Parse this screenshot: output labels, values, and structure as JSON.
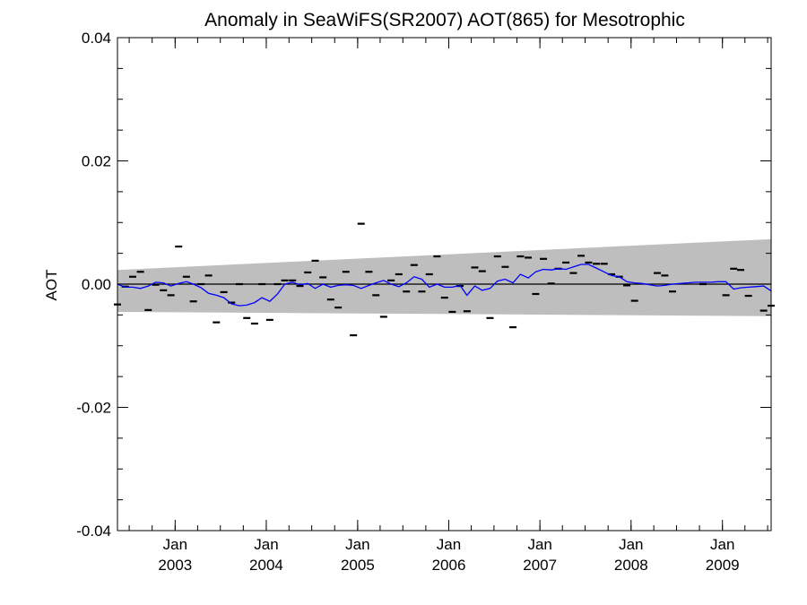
{
  "chart_data": {
    "type": "line",
    "title": "Anomaly in SeaWiFS(SR2007) AOT(865) for Mesotrophic",
    "xlabel": "",
    "ylabel": "AOT",
    "xlim": [
      "2002-05-15",
      "2009-07-15"
    ],
    "ylim": [
      -0.04,
      0.04
    ],
    "yticks": [
      "0.04",
      "0.02",
      "0.00",
      "-0.02",
      "-0.04"
    ],
    "xticks": [
      {
        "month": "Jan",
        "year": "2003",
        "date": "2003-01-01"
      },
      {
        "month": "Jan",
        "year": "2004",
        "date": "2004-01-01"
      },
      {
        "month": "Jan",
        "year": "2005",
        "date": "2005-01-01"
      },
      {
        "month": "Jan",
        "year": "2006",
        "date": "2006-01-01"
      },
      {
        "month": "Jan",
        "year": "2007",
        "date": "2007-01-01"
      },
      {
        "month": "Jan",
        "year": "2008",
        "date": "2008-01-01"
      },
      {
        "month": "Jan",
        "year": "2009",
        "date": "2009-01-01"
      }
    ],
    "zero_line": 0,
    "band": {
      "dates": [
        "2002-05-15",
        "2009-07-15"
      ],
      "upper": [
        0.0023,
        0.0073
      ],
      "lower": [
        -0.0045,
        -0.0052
      ]
    },
    "colors": {
      "smoothed": "#0000ff",
      "band": "#bebebe",
      "points": "#000000",
      "zero": "#000000"
    },
    "series": [
      {
        "kind": "markers",
        "x": [
          "2002-05-15",
          "2002-06-15",
          "2002-07-15",
          "2002-08-15",
          "2002-09-15",
          "2002-10-15",
          "2002-11-15",
          "2002-12-15",
          "2003-01-15",
          "2003-02-15",
          "2003-03-15",
          "2003-04-15",
          "2003-05-15",
          "2003-06-15",
          "2003-07-15",
          "2003-08-15",
          "2003-09-15",
          "2003-10-15",
          "2003-11-15",
          "2003-12-15",
          "2004-01-15",
          "2004-02-15",
          "2004-03-15",
          "2004-04-15",
          "2004-05-15",
          "2004-06-15",
          "2004-07-15",
          "2004-08-15",
          "2004-09-15",
          "2004-10-15",
          "2004-11-15",
          "2004-12-15",
          "2005-01-15",
          "2005-02-15",
          "2005-03-15",
          "2005-04-15",
          "2005-05-15",
          "2005-06-15",
          "2005-07-15",
          "2005-08-15",
          "2005-09-15",
          "2005-10-15",
          "2005-11-15",
          "2005-12-15",
          "2006-01-15",
          "2006-02-15",
          "2006-03-15",
          "2006-04-15",
          "2006-05-15",
          "2006-06-15",
          "2006-07-15",
          "2006-08-15",
          "2006-09-15",
          "2006-10-15",
          "2006-11-15",
          "2006-12-15",
          "2007-01-15",
          "2007-02-15",
          "2007-03-15",
          "2007-04-15",
          "2007-05-15",
          "2007-06-15",
          "2007-07-15",
          "2007-08-15",
          "2007-09-15",
          "2007-10-15",
          "2007-11-15",
          "2007-12-15",
          "2008-01-15",
          "2008-04-15",
          "2008-05-15",
          "2008-06-15",
          "2008-10-15",
          "2009-01-15",
          "2009-02-15",
          "2009-03-15",
          "2009-04-15",
          "2009-06-15",
          "2009-07-15"
        ],
        "y": [
          -0.0033,
          -0.0004,
          0.0012,
          0.002,
          -0.0042,
          -0.0001,
          -0.001,
          -0.0018,
          0.0061,
          0.0012,
          -0.0028,
          0.0,
          0.0014,
          -0.0062,
          -0.0013,
          -0.003,
          0.0,
          -0.0055,
          -0.0064,
          0.0,
          -0.0058,
          0.0,
          0.0006,
          0.0006,
          -0.0003,
          0.0019,
          0.0038,
          0.0011,
          -0.0025,
          -0.0038,
          0.002,
          -0.0083,
          0.0098,
          0.002,
          -0.0018,
          -0.0053,
          0.0006,
          0.0016,
          -0.0012,
          0.0031,
          -0.0012,
          0.0016,
          0.0045,
          -0.0022,
          -0.0045,
          -0.0003,
          -0.0044,
          0.0027,
          0.0021,
          -0.0055,
          0.0045,
          0.0028,
          -0.007,
          0.0045,
          0.0043,
          -0.0016,
          0.0041,
          0.0001,
          0.0025,
          0.0035,
          0.0018,
          0.0046,
          0.0035,
          0.0033,
          0.0033,
          0.0016,
          0.0012,
          -0.0002,
          -0.0027,
          0.0018,
          0.0014,
          -0.0012,
          0.0,
          -0.0018,
          0.0025,
          0.0023,
          -0.0019,
          -0.0043,
          -0.0035
        ]
      },
      {
        "kind": "line",
        "x": [
          "2002-05-15",
          "2002-06-15",
          "2002-07-15",
          "2002-08-15",
          "2002-09-15",
          "2002-10-15",
          "2002-11-15",
          "2002-12-15",
          "2003-01-15",
          "2003-02-15",
          "2003-03-15",
          "2003-04-15",
          "2003-05-15",
          "2003-06-15",
          "2003-07-15",
          "2003-08-15",
          "2003-09-15",
          "2003-10-15",
          "2003-11-15",
          "2003-12-15",
          "2004-01-15",
          "2004-02-15",
          "2004-03-15",
          "2004-04-15",
          "2004-05-15",
          "2004-06-15",
          "2004-07-15",
          "2004-08-15",
          "2004-09-15",
          "2004-10-15",
          "2004-11-15",
          "2004-12-15",
          "2005-01-15",
          "2005-02-15",
          "2005-03-15",
          "2005-04-15",
          "2005-05-15",
          "2005-06-15",
          "2005-07-15",
          "2005-08-15",
          "2005-09-15",
          "2005-10-15",
          "2005-11-15",
          "2005-12-15",
          "2006-01-15",
          "2006-02-15",
          "2006-03-15",
          "2006-04-15",
          "2006-05-15",
          "2006-06-15",
          "2006-07-15",
          "2006-08-15",
          "2006-09-15",
          "2006-10-15",
          "2006-11-15",
          "2006-12-15",
          "2007-01-15",
          "2007-02-15",
          "2007-03-15",
          "2007-04-15",
          "2007-05-15",
          "2007-06-15",
          "2007-07-15",
          "2007-08-15",
          "2007-09-15",
          "2007-10-15",
          "2007-11-15",
          "2007-12-15",
          "2008-01-15",
          "2008-02-15",
          "2008-03-15",
          "2008-04-15",
          "2008-05-15",
          "2008-06-15",
          "2008-07-15",
          "2008-08-15",
          "2008-09-15",
          "2008-10-15",
          "2008-11-15",
          "2008-12-15",
          "2009-01-15",
          "2009-02-15",
          "2009-03-15",
          "2009-04-15",
          "2009-05-15",
          "2009-06-15",
          "2009-07-15"
        ],
        "y": [
          0.0,
          -0.0005,
          -0.0005,
          -0.0007,
          -0.0003,
          0.0003,
          0.0002,
          -0.0003,
          0.0001,
          0.0004,
          0.0,
          -0.0006,
          -0.0015,
          -0.0018,
          -0.0022,
          -0.0032,
          -0.0035,
          -0.0034,
          -0.003,
          -0.0022,
          -0.0028,
          -0.0016,
          0.0,
          0.0003,
          -0.0001,
          0.0001,
          -0.0007,
          0.0,
          -0.0005,
          -0.0002,
          -0.0001,
          -0.0002,
          -0.0007,
          -0.0002,
          0.0002,
          0.0006,
          0.0,
          -0.0004,
          0.0002,
          0.0012,
          0.0008,
          -0.0005,
          0.0,
          -0.0005,
          -0.0005,
          -0.0002,
          -0.0018,
          -0.0003,
          -0.001,
          -0.0007,
          0.0005,
          0.0008,
          0.0002,
          0.0016,
          0.001,
          0.002,
          0.0024,
          0.0023,
          0.0025,
          0.0024,
          0.0028,
          0.0032,
          0.0032,
          0.0026,
          0.002,
          0.0014,
          0.0012,
          0.0004,
          0.0002,
          0.0001,
          -0.0001,
          -0.0003,
          -0.0002,
          0.0,
          0.0001,
          0.0002,
          0.0003,
          0.0003,
          0.0003,
          0.0004,
          0.0004,
          -0.0008,
          -0.0006,
          -0.0005,
          -0.0004,
          -0.0003,
          -0.0011
        ]
      }
    ]
  }
}
